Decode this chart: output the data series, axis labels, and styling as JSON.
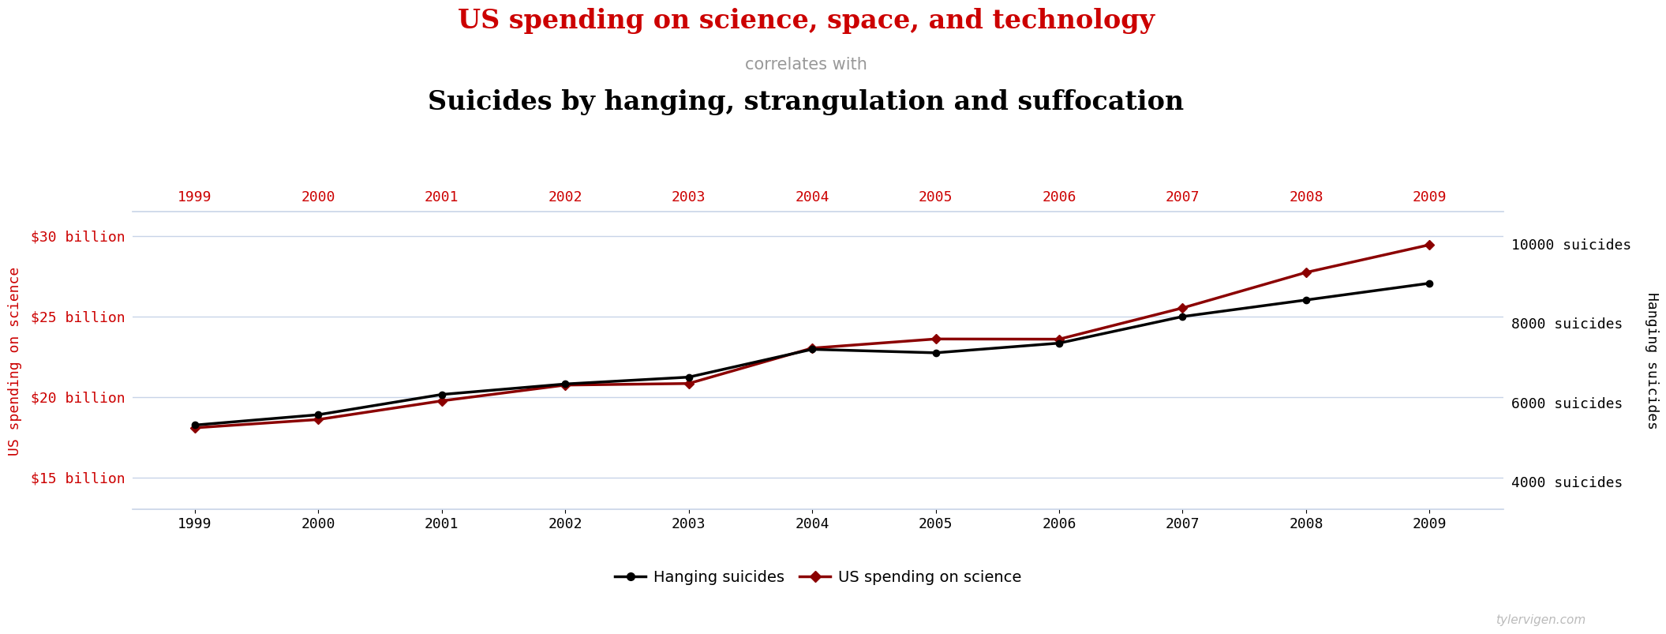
{
  "title_line1": "US spending on science, space, and technology",
  "title_line2": "correlates with",
  "title_line3": "Suicides by hanging, strangulation and suffocation",
  "years": [
    1999,
    2000,
    2001,
    2002,
    2003,
    2004,
    2005,
    2006,
    2007,
    2008,
    2009
  ],
  "hanging_suicides": [
    5427,
    5688,
    6198,
    6462,
    6635,
    7336,
    7248,
    7491,
    8161,
    8578,
    9000
  ],
  "us_spending_billions": [
    18.079,
    18.594,
    19.753,
    20.734,
    20.831,
    23.029,
    23.597,
    23.584,
    25.525,
    27.731,
    29.449
  ],
  "line_hanging_color": "#000000",
  "line_spending_color": "#8b0000",
  "grid_color": "#c8d4e8",
  "title1_color": "#cc0000",
  "title2_color": "#999999",
  "title3_color": "#000000",
  "background_color": "#ffffff",
  "left_tick_color": "#cc0000",
  "right_tick_color": "#000000",
  "top_xtick_color": "#cc0000",
  "bottom_xtick_color": "#000000",
  "left_yticks_labels": [
    "$15 billion",
    "$20 billion",
    "$25 billion",
    "$30 billion"
  ],
  "left_yticks_values": [
    15,
    20,
    25,
    30
  ],
  "right_yticks_labels": [
    "4000 suicides",
    "6000 suicides",
    "8000 suicides",
    "10000 suicides"
  ],
  "right_yticks_values": [
    4000,
    6000,
    8000,
    10000
  ],
  "left_ylim": [
    13.0,
    31.5
  ],
  "right_ylim": [
    3300,
    10800
  ],
  "xlim": [
    1998.5,
    2009.6
  ],
  "watermark": "tylervigen.com",
  "legend_label1": "Hanging suicides",
  "legend_label2": "US spending on science",
  "left_ylabel": "US spending on science",
  "right_ylabel": "Hanging suicides"
}
